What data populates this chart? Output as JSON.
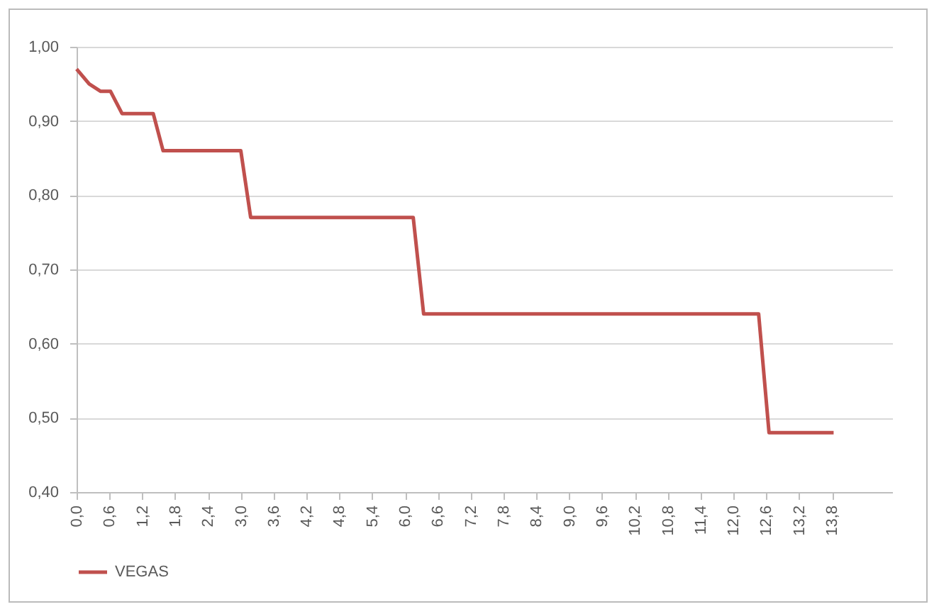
{
  "chart_data": {
    "type": "line",
    "x": [
      0.0,
      0.23,
      0.44,
      0.62,
      0.83,
      1.4,
      1.58,
      3.0,
      3.18,
      6.15,
      6.34,
      12.46,
      12.65,
      13.83
    ],
    "series": [
      {
        "name": "VEGAS",
        "color": "#c0504d",
        "values": [
          0.97,
          0.95,
          0.94,
          0.94,
          0.91,
          0.91,
          0.86,
          0.86,
          0.77,
          0.77,
          0.64,
          0.64,
          0.48,
          0.48
        ]
      }
    ],
    "xlim": [
      0,
      14.9
    ],
    "xticks": [
      {
        "value": 0,
        "label": "0,0"
      },
      {
        "value": 0.6,
        "label": "0,6"
      },
      {
        "value": 1.2,
        "label": "1,2"
      },
      {
        "value": 1.8,
        "label": "1,8"
      },
      {
        "value": 2.4,
        "label": "2,4"
      },
      {
        "value": 3.0,
        "label": "3,0"
      },
      {
        "value": 3.6,
        "label": "3,6"
      },
      {
        "value": 4.2,
        "label": "4,2"
      },
      {
        "value": 4.8,
        "label": "4,8"
      },
      {
        "value": 5.4,
        "label": "5,4"
      },
      {
        "value": 6.0,
        "label": "6,0"
      },
      {
        "value": 6.6,
        "label": "6,6"
      },
      {
        "value": 7.2,
        "label": "7,2"
      },
      {
        "value": 7.8,
        "label": "7,8"
      },
      {
        "value": 8.4,
        "label": "8,4"
      },
      {
        "value": 9.0,
        "label": "9,0"
      },
      {
        "value": 9.6,
        "label": "9,6"
      },
      {
        "value": 10.2,
        "label": "10,2"
      },
      {
        "value": 10.8,
        "label": "10,8"
      },
      {
        "value": 11.4,
        "label": "11,4"
      },
      {
        "value": 12.0,
        "label": "12,0"
      },
      {
        "value": 12.6,
        "label": "12,6"
      },
      {
        "value": 13.2,
        "label": "13,2"
      },
      {
        "value": 13.8,
        "label": "13,8"
      }
    ],
    "ylim": [
      0.4,
      1.0
    ],
    "yticks": [
      {
        "value": 0.4,
        "label": "0,40"
      },
      {
        "value": 0.5,
        "label": "0,50"
      },
      {
        "value": 0.6,
        "label": "0,60"
      },
      {
        "value": 0.7,
        "label": "0,70"
      },
      {
        "value": 0.8,
        "label": "0,80"
      },
      {
        "value": 0.9,
        "label": "0,90"
      },
      {
        "value": 1.0,
        "label": "1,00"
      }
    ],
    "grid": "y",
    "legend": "bottom",
    "marker": "none",
    "line_style": "solid"
  }
}
